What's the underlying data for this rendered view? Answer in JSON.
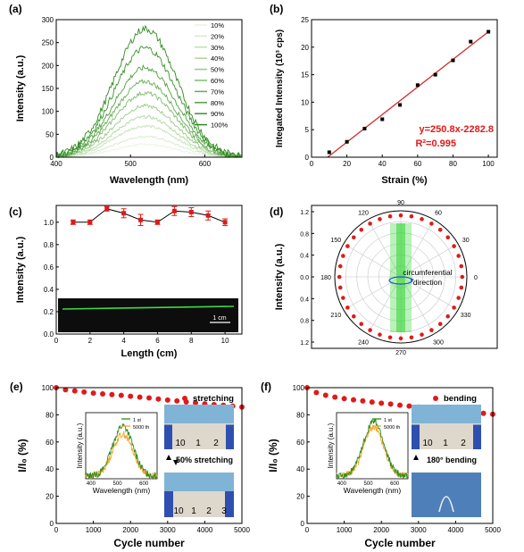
{
  "chart_data": [
    {
      "panel": "(a)",
      "type": "line",
      "xlabel": "Wavelength (nm)",
      "ylabel": "Intensity (a.u.)",
      "xlim": [
        400,
        650
      ],
      "ylim": [
        0,
        300
      ],
      "xticks": [
        "400",
        "500",
        "600"
      ],
      "yticks": [
        "0",
        "50",
        "100",
        "150",
        "200",
        "250",
        "300"
      ],
      "peak_x": 520,
      "series": [
        {
          "name": "10%",
          "peak": 28
        },
        {
          "name": "20%",
          "peak": 45
        },
        {
          "name": "30%",
          "peak": 68
        },
        {
          "name": "40%",
          "peak": 88
        },
        {
          "name": "50%",
          "peak": 112
        },
        {
          "name": "60%",
          "peak": 140
        },
        {
          "name": "70%",
          "peak": 165
        },
        {
          "name": "80%",
          "peak": 195
        },
        {
          "name": "90%",
          "peak": 238
        },
        {
          "name": "100%",
          "peak": 280
        }
      ]
    },
    {
      "panel": "(b)",
      "type": "scatter",
      "xlabel": "Strain (%)",
      "ylabel": "Integated Intensity (10³ cps)",
      "xlim": [
        0,
        105
      ],
      "ylim": [
        0,
        25
      ],
      "xticks": [
        "0",
        "20",
        "40",
        "60",
        "80",
        "100"
      ],
      "yticks": [
        "0",
        "5",
        "10",
        "15",
        "20",
        "25"
      ],
      "x": [
        10,
        20,
        30,
        40,
        50,
        60,
        70,
        80,
        90,
        100
      ],
      "y": [
        0.9,
        2.8,
        5.2,
        6.9,
        9.5,
        13.1,
        15.0,
        17.6,
        21.0,
        22.8
      ],
      "fit": {
        "slope": 0.2508,
        "intercept": -2.2828
      },
      "annotations": [
        "y=250.8x-2282.8",
        "R²=0.995"
      ]
    },
    {
      "panel": "(c)",
      "type": "line",
      "xlabel": "Length (cm)",
      "ylabel": "Intensity (a.u.)",
      "xlim": [
        0,
        11
      ],
      "ylim": [
        0,
        1.15
      ],
      "xticks": [
        "0",
        "2",
        "4",
        "6",
        "8",
        "10"
      ],
      "yticks": [
        "0.0",
        "0.2",
        "0.4",
        "0.6",
        "0.8",
        "1.0"
      ],
      "x": [
        1,
        2,
        3,
        4,
        5,
        6,
        7,
        8,
        9,
        10
      ],
      "y": [
        1.0,
        1.0,
        1.12,
        1.08,
        1.02,
        1.0,
        1.1,
        1.09,
        1.06,
        1.0
      ],
      "err": [
        0.02,
        0.02,
        0.02,
        0.04,
        0.05,
        0.02,
        0.04,
        0.04,
        0.04,
        0.03
      ],
      "scale_label": "1 cm"
    },
    {
      "panel": "(d)",
      "type": "scatter",
      "ylabel": "Intensity (a.u.)",
      "rlim": [
        0,
        1.2
      ],
      "y_tick_labels": [
        "1.2",
        "0.8",
        "0.4",
        "0.0",
        "0.4",
        "0.8",
        "1.2"
      ],
      "angle_labels": [
        "0",
        "30",
        "60",
        "90",
        "120",
        "150",
        "180",
        "210",
        "240",
        "270",
        "300",
        "330"
      ],
      "angle_step_deg": 10,
      "r_values": 1.0,
      "annotation": [
        "circumferential",
        "direction"
      ]
    },
    {
      "panel": "(e)",
      "type": "scatter",
      "xlabel": "Cycle number",
      "ylabel": "I/I₀ (%)",
      "xlim": [
        0,
        5000
      ],
      "ylim": [
        0,
        100
      ],
      "xticks": [
        "0",
        "1000",
        "2000",
        "3000",
        "4000",
        "5000"
      ],
      "yticks": [
        "0",
        "20",
        "40",
        "60",
        "80",
        "100"
      ],
      "x": [
        0,
        250,
        500,
        750,
        1000,
        1250,
        1500,
        1750,
        2000,
        2250,
        2500,
        2750,
        3000,
        3250,
        3500,
        3750,
        4000,
        4250,
        4500,
        4750,
        5000
      ],
      "y": [
        100,
        98.4,
        97.6,
        96.8,
        96.0,
        95.4,
        94.9,
        94.3,
        93.7,
        93.0,
        92.4,
        91.6,
        90.9,
        90.2,
        89.5,
        88.8,
        88.1,
        87.5,
        87.0,
        86.4,
        85.7
      ],
      "legend": "stretching",
      "inset": {
        "xlabel": "Wavelength (nm)",
        "ylabel": "Intensity (a.u.)",
        "xticks": [
          "400",
          "500",
          "600"
        ],
        "series": [
          {
            "name": "1 st",
            "peak": 72
          },
          {
            "name": "5000 th",
            "peak": 60
          }
        ]
      },
      "photo_label": "50% stretching",
      "ruler_top": [
        "10",
        "1",
        "2"
      ],
      "ruler_bottom": [
        "10",
        "1",
        "2",
        "3"
      ]
    },
    {
      "panel": "(f)",
      "type": "scatter",
      "xlabel": "Cycle number",
      "ylabel": "I/I₀ (%)",
      "xlim": [
        0,
        5000
      ],
      "ylim": [
        0,
        100
      ],
      "xticks": [
        "0",
        "1000",
        "2000",
        "3000",
        "4000",
        "5000"
      ],
      "yticks": [
        "0",
        "20",
        "40",
        "60",
        "80",
        "100"
      ],
      "x": [
        0,
        250,
        500,
        750,
        1000,
        1250,
        1500,
        1750,
        2000,
        2250,
        2500,
        2750,
        3000,
        3250,
        3500,
        3750,
        4000,
        4250,
        4500,
        4750,
        5000
      ],
      "y": [
        100,
        96.4,
        94.4,
        93.0,
        91.9,
        91.0,
        90.2,
        89.4,
        88.6,
        87.9,
        87.1,
        86.4,
        85.7,
        85.0,
        84.3,
        83.6,
        82.9,
        82.3,
        81.7,
        81.1,
        80.4
      ],
      "legend": "bending",
      "inset": {
        "xlabel": "Wavelength (nm)",
        "ylabel": "Intensity (a.u.)",
        "xticks": [
          "400",
          "500",
          "600"
        ],
        "series": [
          {
            "name": "1 st",
            "peak": 78
          },
          {
            "name": "5000 th",
            "peak": 70
          }
        ]
      },
      "photo_label": "180° bending",
      "ruler_top": [
        "10",
        "1",
        "2"
      ]
    }
  ],
  "colors": {
    "green": "#2e8b1f",
    "orange": "#f5a623",
    "red": "#e01a1a",
    "fitline": "#d42a2a",
    "beam": "#3dd63d"
  }
}
